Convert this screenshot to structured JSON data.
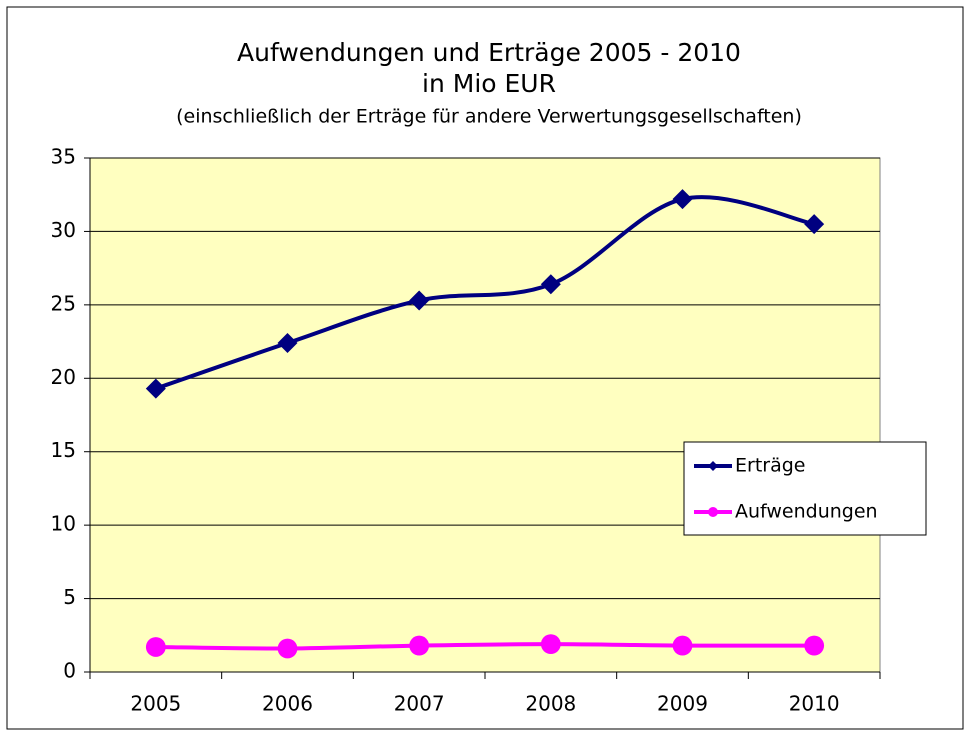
{
  "chart_data": {
    "type": "line",
    "title": "Aufwendungen und Erträge 2005 - 2010",
    "subtitle": "in Mio EUR",
    "annotation": "(einschließlich der Erträge für andere Verwertungsgesellschaften)",
    "categories": [
      "2005",
      "2006",
      "2007",
      "2008",
      "2009",
      "2010"
    ],
    "series": [
      {
        "name": "Erträge",
        "color": "#000080",
        "marker": "diamond",
        "values": [
          19.3,
          22.4,
          25.3,
          26.4,
          32.2,
          30.5
        ]
      },
      {
        "name": "Aufwendungen",
        "color": "#ff00ff",
        "marker": "circle",
        "values": [
          1.7,
          1.6,
          1.8,
          1.9,
          1.8,
          1.8
        ]
      }
    ],
    "ylim": [
      0,
      35
    ],
    "yticks": [
      0,
      5,
      10,
      15,
      20,
      25,
      30,
      35
    ],
    "grid": true,
    "smooth": true,
    "plot_background": "#ffffc0",
    "legend": "right"
  }
}
